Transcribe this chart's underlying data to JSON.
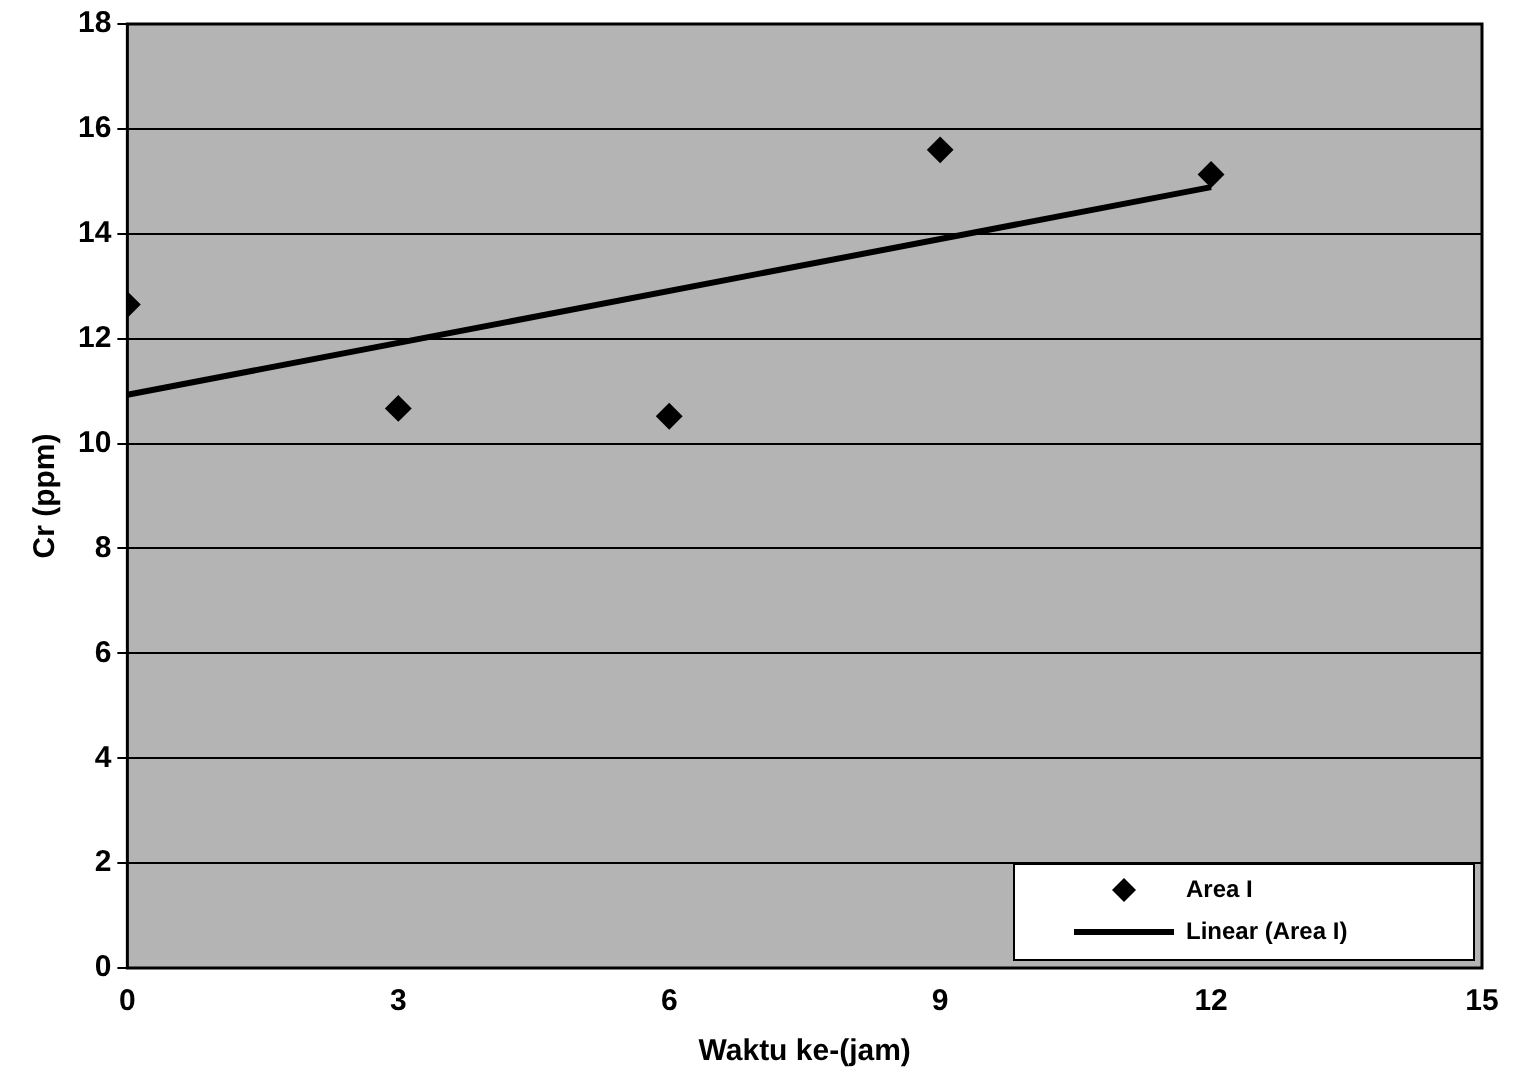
{
  "chart_data": {
    "type": "scatter",
    "xlabel": "Waktu ke-(jam)",
    "ylabel": "Cr (ppm)",
    "grid": "y",
    "legend": "bottom right",
    "xlim": [
      0,
      15
    ],
    "xticks": [
      0,
      3,
      6,
      9,
      12,
      15
    ],
    "ylim": [
      0,
      18
    ],
    "yticks": [
      0,
      2,
      4,
      6,
      8,
      10,
      12,
      14,
      16,
      18
    ],
    "series": [
      {
        "name": "Area I",
        "marker": "diamond",
        "color": "#000000",
        "x": [
          0,
          3,
          6,
          9,
          12
        ],
        "values": [
          12.65,
          10.67,
          10.52,
          15.6,
          15.13
        ]
      },
      {
        "name": "Linear (Area I)",
        "type": "line",
        "marker": "none",
        "color": "#000000",
        "x": [
          0,
          12
        ],
        "values": [
          10.93,
          14.89
        ]
      }
    ]
  }
}
